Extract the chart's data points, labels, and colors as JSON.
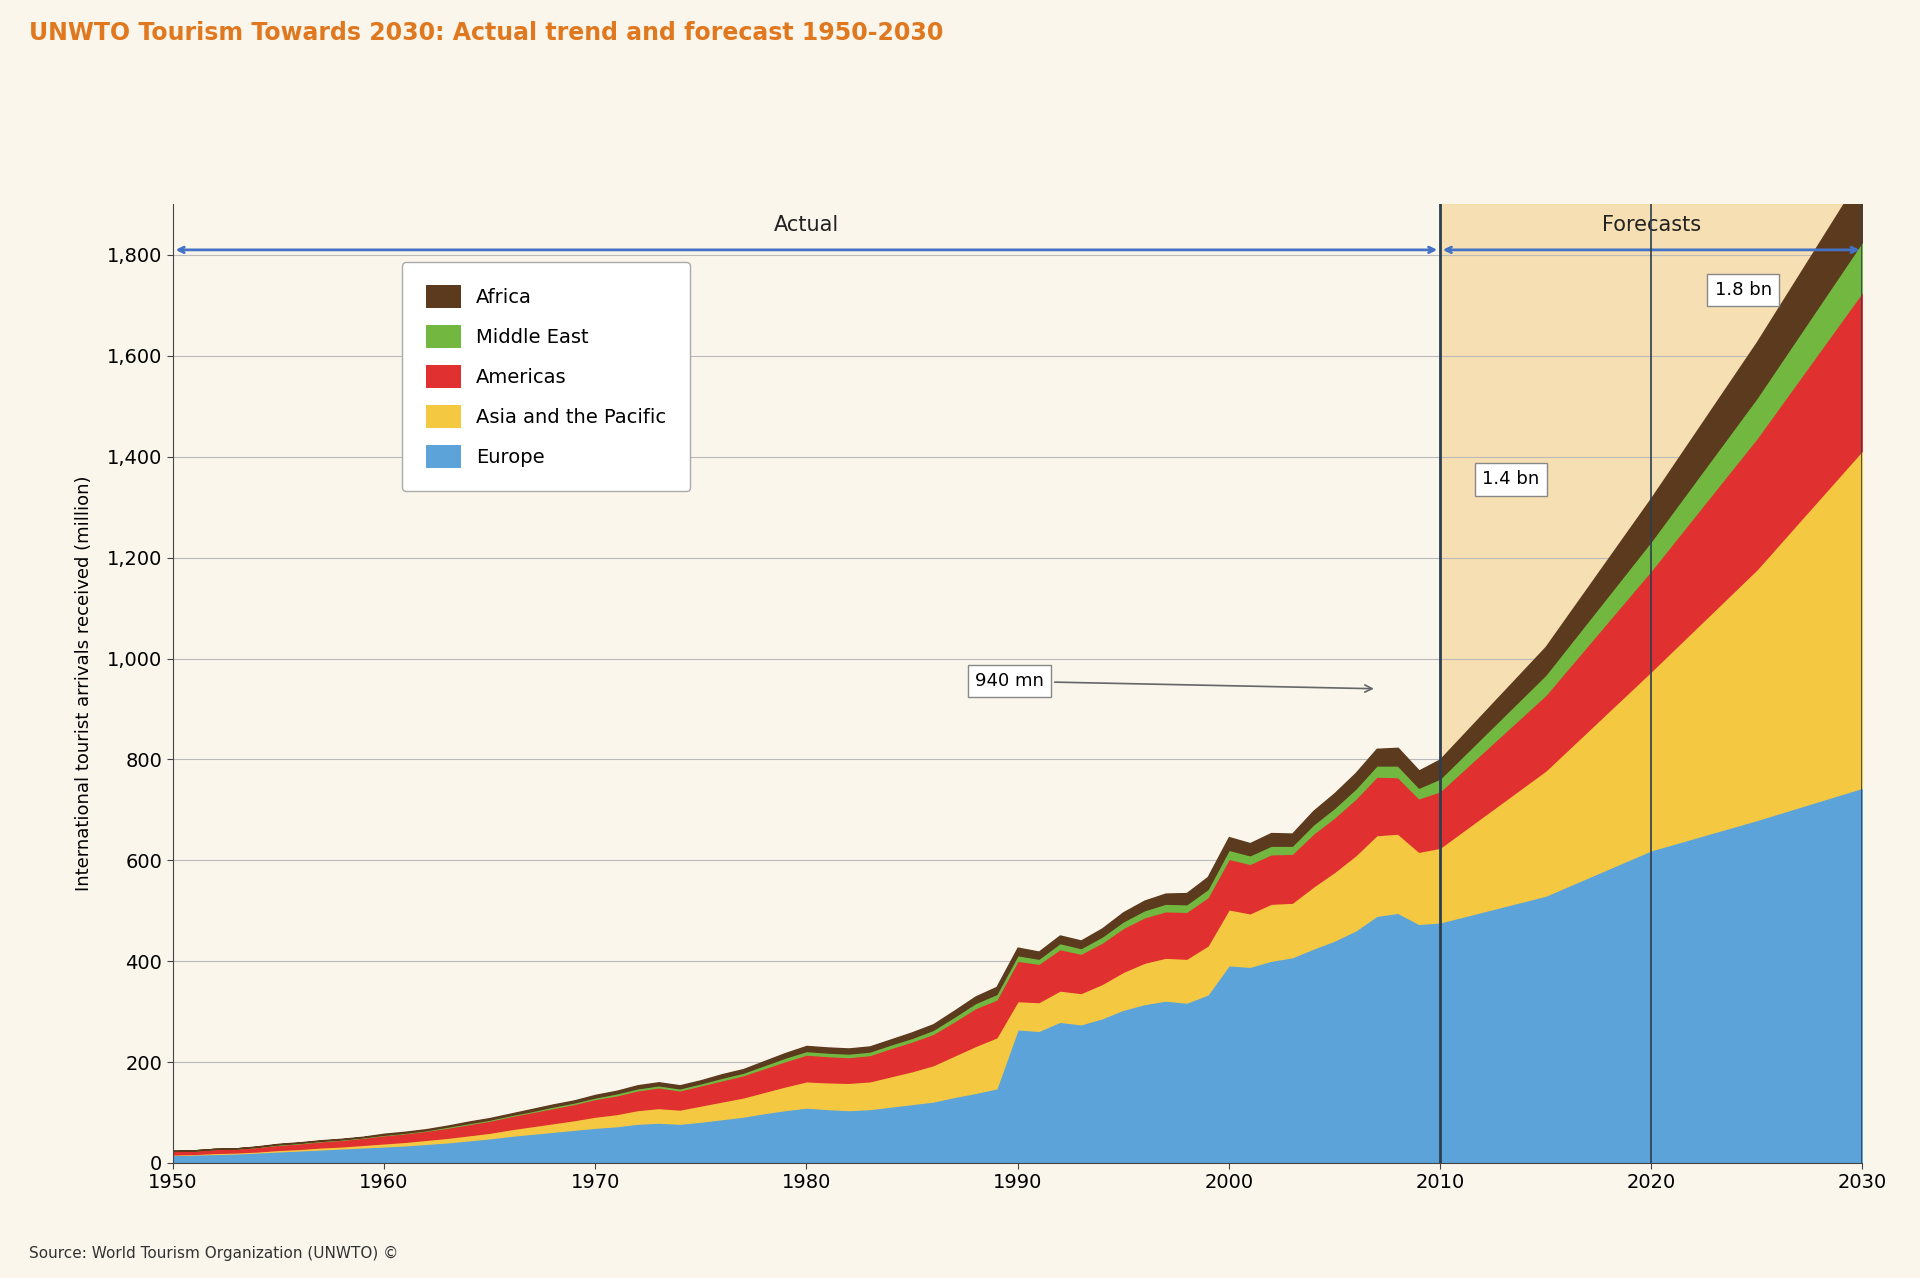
{
  "title": "UNWTO Tourism Towards 2030: Actual trend and forecast 1950-2030",
  "title_color": "#E07820",
  "ylabel": "International tourist arrivals received (million)",
  "source": "Source: World Tourism Organization (UNWTO) ©",
  "background_color": "#FAF6EC",
  "plot_background_color": "#FAF6EC",
  "years_actual": [
    1950,
    1951,
    1952,
    1953,
    1954,
    1955,
    1956,
    1957,
    1958,
    1959,
    1960,
    1961,
    1962,
    1963,
    1964,
    1965,
    1966,
    1967,
    1968,
    1969,
    1970,
    1971,
    1972,
    1973,
    1974,
    1975,
    1976,
    1977,
    1978,
    1979,
    1980,
    1981,
    1982,
    1983,
    1984,
    1985,
    1986,
    1987,
    1988,
    1989,
    1990,
    1991,
    1992,
    1993,
    1994,
    1995,
    1996,
    1997,
    1998,
    1999,
    2000,
    2001,
    2002,
    2003,
    2004,
    2005,
    2006,
    2007,
    2008,
    2009,
    2010
  ],
  "europe_actual": [
    16,
    17,
    18,
    19,
    21,
    23,
    25,
    27,
    29,
    31,
    33,
    35,
    38,
    41,
    45,
    49,
    54,
    58,
    62,
    66,
    70,
    73,
    78,
    80,
    78,
    82,
    87,
    92,
    99,
    105,
    110,
    107,
    105,
    107,
    112,
    117,
    122,
    131,
    139,
    148,
    265,
    262,
    280,
    275,
    287,
    304,
    315,
    322,
    318,
    334,
    392,
    389,
    401,
    408,
    425,
    441,
    461,
    490,
    496,
    474,
    477
  ],
  "asia_actual": [
    1,
    1,
    2,
    2,
    2,
    3,
    3,
    4,
    4,
    5,
    6,
    7,
    8,
    9,
    10,
    11,
    13,
    15,
    17,
    19,
    22,
    24,
    27,
    29,
    28,
    32,
    35,
    38,
    42,
    47,
    52,
    53,
    54,
    55,
    60,
    65,
    72,
    82,
    93,
    101,
    56,
    57,
    62,
    62,
    68,
    75,
    82,
    85,
    87,
    97,
    111,
    106,
    113,
    108,
    123,
    136,
    149,
    160,
    157,
    143,
    148
  ],
  "americas_actual": [
    7,
    7,
    8,
    8,
    9,
    10,
    11,
    12,
    13,
    14,
    16,
    17,
    18,
    20,
    22,
    24,
    26,
    28,
    30,
    32,
    35,
    37,
    39,
    41,
    38,
    40,
    42,
    44,
    47,
    50,
    53,
    52,
    51,
    52,
    56,
    59,
    62,
    68,
    75,
    75,
    80,
    76,
    82,
    78,
    82,
    87,
    90,
    92,
    93,
    96,
    100,
    98,
    98,
    97,
    105,
    108,
    112,
    116,
    112,
    106,
    112
  ],
  "mideast_actual": [
    0,
    0,
    0,
    0,
    0,
    1,
    1,
    1,
    1,
    1,
    1,
    1,
    1,
    2,
    2,
    2,
    2,
    2,
    3,
    3,
    3,
    4,
    4,
    4,
    4,
    4,
    5,
    5,
    6,
    7,
    7,
    7,
    7,
    7,
    7,
    7,
    8,
    9,
    10,
    11,
    11,
    10,
    12,
    11,
    12,
    13,
    14,
    15,
    15,
    16,
    18,
    17,
    17,
    16,
    18,
    19,
    20,
    22,
    23,
    21,
    25
  ],
  "africa_actual": [
    0,
    0,
    0,
    0,
    1,
    1,
    1,
    1,
    1,
    1,
    2,
    2,
    2,
    2,
    3,
    3,
    3,
    4,
    4,
    4,
    5,
    5,
    6,
    6,
    6,
    6,
    7,
    7,
    8,
    9,
    10,
    10,
    10,
    10,
    10,
    11,
    11,
    12,
    13,
    14,
    15,
    14,
    15,
    15,
    16,
    18,
    19,
    20,
    22,
    24,
    25,
    24,
    25,
    24,
    27,
    29,
    31,
    33,
    35,
    34,
    38
  ],
  "years_forecast": [
    2010,
    2015,
    2020,
    2025,
    2030
  ],
  "europe_forecast": [
    477,
    530,
    620,
    680,
    744
  ],
  "asia_forecast": [
    148,
    248,
    355,
    497,
    669
  ],
  "americas_forecast": [
    112,
    150,
    200,
    260,
    314
  ],
  "mideast_forecast": [
    25,
    40,
    58,
    80,
    100
  ],
  "africa_forecast": [
    38,
    55,
    85,
    110,
    134
  ],
  "color_europe": "#5BA3D9",
  "color_asia": "#F5C842",
  "color_americas": "#E03030",
  "color_mideast": "#72B840",
  "color_africa": "#5C3A1E",
  "forecast_bg_color": "#F5D9A0",
  "arrow_color": "#4472C4",
  "ylim_max": 1900,
  "xlim_min": 1950,
  "xlim_max": 2030
}
